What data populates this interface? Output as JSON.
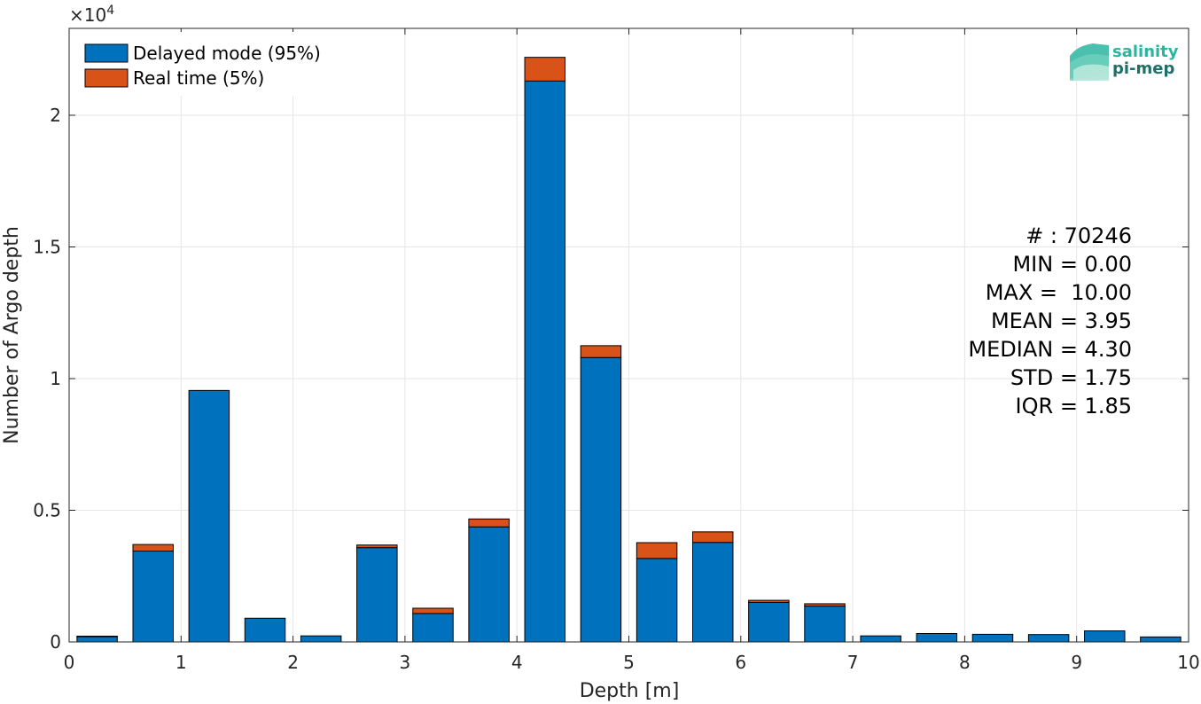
{
  "chart_data": {
    "type": "bar",
    "stacked": true,
    "xlabel": "Depth [m]",
    "ylabel": "Number of Argo depth",
    "xlim": [
      0,
      10
    ],
    "ylim": [
      0,
      23300
    ],
    "y_exponent_label": "×10",
    "y_exponent_power": "4",
    "x_ticks": [
      "0",
      "1",
      "2",
      "3",
      "4",
      "5",
      "6",
      "7",
      "8",
      "9",
      "10"
    ],
    "y_ticks": [
      {
        "value": 0,
        "label": "0"
      },
      {
        "value": 5000,
        "label": "0.5"
      },
      {
        "value": 10000,
        "label": "1"
      },
      {
        "value": 15000,
        "label": "1.5"
      },
      {
        "value": 20000,
        "label": "2"
      }
    ],
    "grid": true,
    "legend_position": "top-left",
    "bin_width": 0.5,
    "x": [
      0.25,
      0.75,
      1.25,
      1.75,
      2.25,
      2.75,
      3.25,
      3.75,
      4.25,
      4.75,
      5.25,
      5.75,
      6.25,
      6.75,
      7.25,
      7.75,
      8.25,
      8.75,
      9.25,
      9.75
    ],
    "series": [
      {
        "name": "Delayed mode (95%)",
        "color": "#0072BD",
        "values": [
          200,
          3450,
          9550,
          900,
          230,
          3580,
          1080,
          4370,
          21300,
          10800,
          3170,
          3780,
          1500,
          1360,
          230,
          320,
          290,
          280,
          420,
          190
        ]
      },
      {
        "name": "Real time (5%)",
        "color": "#D95319",
        "values": [
          20,
          250,
          0,
          0,
          0,
          100,
          200,
          300,
          900,
          450,
          600,
          400,
          80,
          90,
          0,
          0,
          0,
          0,
          0,
          0
        ]
      }
    ],
    "stats_lines": [
      "# : 70246",
      "MIN = 0.00",
      "MAX =  10.00",
      "MEAN = 3.95",
      "MEDIAN = 4.30",
      "STD = 1.75",
      "IQR = 1.85"
    ]
  },
  "logo": {
    "line1": "salinity",
    "line2": "pi-mep",
    "color1": "#2BB5A0",
    "color2": "#1E6F6A"
  }
}
